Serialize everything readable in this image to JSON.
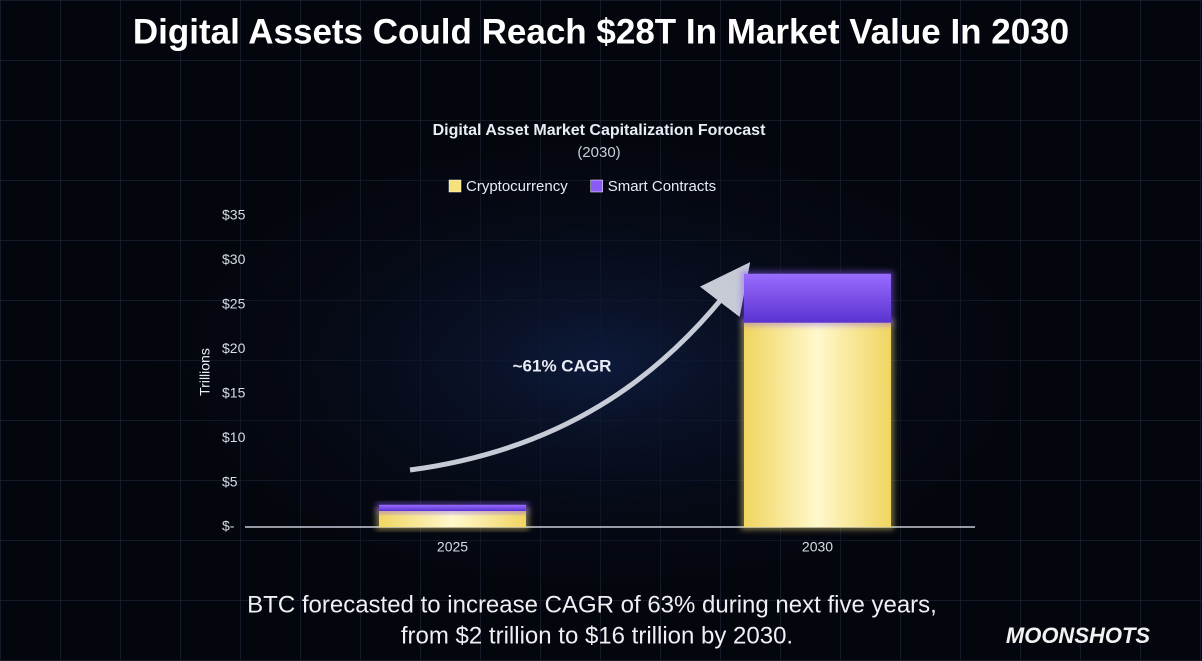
{
  "headline": "Digital Assets Could Reach $28T In Market Value In 2030",
  "chart_data": {
    "type": "stacked-bar",
    "title": "Digital Asset Market Capitalization Forocast",
    "subtitle": "(2030)",
    "y_label": "Trillions",
    "annotation": "~61% CAGR",
    "categories": [
      "2025",
      "2030"
    ],
    "series": [
      {
        "name": "Cryptocurrency",
        "color": "#f5e27a",
        "values": [
          1.8,
          23
        ]
      },
      {
        "name": "Smart Contracts",
        "color": "#8a5cf5",
        "values": [
          0.7,
          5.5
        ]
      }
    ],
    "ylim": [
      0,
      35
    ],
    "yticks": [
      {
        "value": 0,
        "label": "$-"
      },
      {
        "value": 5,
        "label": "$5"
      },
      {
        "value": 10,
        "label": "$10"
      },
      {
        "value": 15,
        "label": "$15"
      },
      {
        "value": 20,
        "label": "$20"
      },
      {
        "value": 25,
        "label": "$25"
      },
      {
        "value": 30,
        "label": "$30"
      },
      {
        "value": 35,
        "label": "$35"
      }
    ],
    "legend": "top"
  },
  "caption": [
    "BTC forecasted to increase CAGR of 63% during next five years,",
    "from $2 trillion to $16 trillion by 2030."
  ],
  "logo": "MOONSHOTS"
}
